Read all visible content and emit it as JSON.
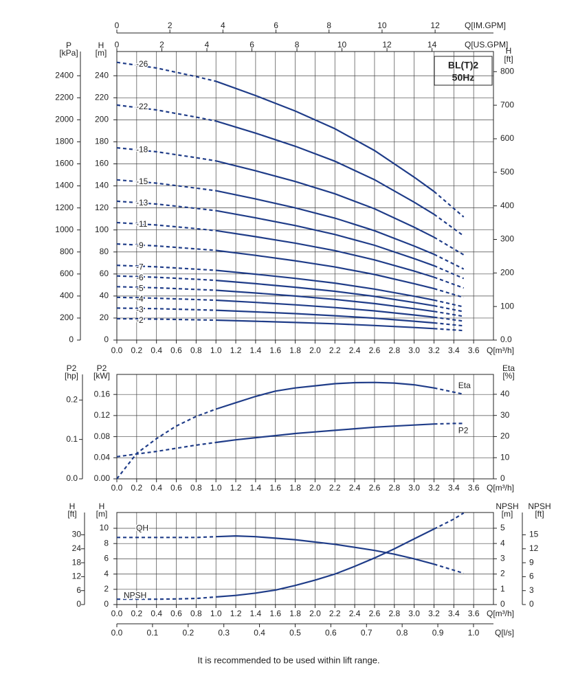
{
  "footnote": "It is recommended to be used within lift range.",
  "chart_data": [
    {
      "type": "line",
      "title": "BL(T)2",
      "subtitle": "50Hz",
      "color": "#1f3c88",
      "grid": true,
      "solid_range": [
        1.0,
        3.2
      ],
      "x_label": "Q[m³/h]",
      "xlim": [
        0,
        3.8
      ],
      "xticks": [
        {
          "value": 0,
          "label": "0.0"
        },
        0.2,
        0.4,
        0.6,
        0.8,
        {
          "value": 1,
          "label": "1.0"
        },
        1.2,
        1.4,
        1.6,
        1.8,
        {
          "value": 2,
          "label": "2.0"
        },
        2.2,
        2.4,
        2.6,
        2.8,
        {
          "value": 3,
          "label": "3.0"
        },
        3.2,
        3.4,
        3.6
      ],
      "x2_label": "Q[US.GPM]",
      "x2lim": [
        0,
        16.73
      ],
      "x2ticks": [
        0,
        2,
        4,
        6,
        8,
        10,
        12,
        14
      ],
      "x3_label": "Q[IM.GPM]",
      "x3lim": [
        0,
        14.2
      ],
      "x3ticks": [
        0,
        2,
        4,
        6,
        8,
        10,
        12
      ],
      "y_label": "H",
      "y_unit": "[m]",
      "ylim": [
        0,
        262
      ],
      "yticks": [
        0,
        20,
        40,
        60,
        80,
        100,
        120,
        140,
        160,
        180,
        200,
        220,
        240
      ],
      "y2_label": "P",
      "y2_unit": "[kPa]",
      "y2lim": [
        0,
        2620
      ],
      "y2ticks": [
        0,
        200,
        400,
        600,
        800,
        1000,
        1200,
        1400,
        1600,
        1800,
        2000,
        2200,
        2400
      ],
      "y3_label": "H",
      "y3_unit": "[ft]",
      "y3lim": [
        0,
        860
      ],
      "y3ticks": [
        {
          "value": 0,
          "label": "0.0"
        },
        100,
        200,
        300,
        400,
        500,
        600,
        700,
        800
      ],
      "x": [
        0,
        0.4,
        0.8,
        1.0,
        1.4,
        1.8,
        2.2,
        2.6,
        3.0,
        3.2,
        3.5
      ],
      "series": [
        {
          "name": "-2",
          "values": [
            19.4,
            19.0,
            18.4,
            18.1,
            17.1,
            16.0,
            14.8,
            13.2,
            11.4,
            10.4,
            8.6
          ]
        },
        {
          "name": "-3",
          "values": [
            29.1,
            28.5,
            27.6,
            27.1,
            25.6,
            24.0,
            22.1,
            19.9,
            17.1,
            15.6,
            12.9
          ]
        },
        {
          "name": "-4",
          "values": [
            38.8,
            38.0,
            36.8,
            36.2,
            34.2,
            32.0,
            29.5,
            26.5,
            22.8,
            20.8,
            17.2
          ]
        },
        {
          "name": "-5",
          "values": [
            48.5,
            47.5,
            46.0,
            45.2,
            42.7,
            40.0,
            36.9,
            33.1,
            28.5,
            26.0,
            21.5
          ]
        },
        {
          "name": "-6",
          "values": [
            58.2,
            57.0,
            55.2,
            54.2,
            51.2,
            48.0,
            44.3,
            39.7,
            34.1,
            31.1,
            25.8
          ]
        },
        {
          "name": "-7",
          "values": [
            67.9,
            66.5,
            64.4,
            63.3,
            59.8,
            56.0,
            51.7,
            46.3,
            39.8,
            36.3,
            30.1
          ]
        },
        {
          "name": "-9",
          "values": [
            87.3,
            85.5,
            82.8,
            81.4,
            76.9,
            72.0,
            66.4,
            59.6,
            51.2,
            46.7,
            38.7
          ]
        },
        {
          "name": "-11",
          "values": [
            106.7,
            104.5,
            101.2,
            99.4,
            93.9,
            88.0,
            81.2,
            72.8,
            62.6,
            57.1,
            47.3
          ]
        },
        {
          "name": "-13",
          "values": [
            126.1,
            123.5,
            119.6,
            117.5,
            111.0,
            104.0,
            95.9,
            86.1,
            74.0,
            67.5,
            55.9
          ]
        },
        {
          "name": "-15",
          "values": [
            145.5,
            142.5,
            138.0,
            135.6,
            128.1,
            120.0,
            110.7,
            99.3,
            85.4,
            77.9,
            64.5
          ]
        },
        {
          "name": "-18",
          "values": [
            174.6,
            171.0,
            165.6,
            162.7,
            153.7,
            144.0,
            132.8,
            119.2,
            102.4,
            93.4,
            77.4
          ]
        },
        {
          "name": "-22",
          "values": [
            213.4,
            209.0,
            202.4,
            198.9,
            187.9,
            176.0,
            162.4,
            145.6,
            125.2,
            114.2,
            94.6
          ]
        },
        {
          "name": "-26",
          "values": [
            252.2,
            247.0,
            239.2,
            235.0,
            222.0,
            208.0,
            191.9,
            172.1,
            147.9,
            134.9,
            111.8
          ]
        }
      ]
    },
    {
      "type": "line",
      "color": "#1f3c88",
      "grid": true,
      "solid_range": [
        1.0,
        3.2
      ],
      "x_label": "Q[m³/h]",
      "xlim": [
        0,
        3.8
      ],
      "xticks": [
        {
          "value": 0,
          "label": "0.0"
        },
        0.2,
        0.4,
        0.6,
        0.8,
        {
          "value": 1,
          "label": "1.0"
        },
        1.2,
        1.4,
        1.6,
        1.8,
        {
          "value": 2,
          "label": "2.0"
        },
        2.2,
        2.4,
        2.6,
        2.8,
        {
          "value": 3,
          "label": "3.0"
        },
        3.2,
        3.4,
        3.6
      ],
      "y_label": "P2",
      "y_unit": "[kW]",
      "ylim": [
        0,
        0.198
      ],
      "yticks": [
        {
          "value": 0,
          "label": "0.00"
        },
        0.04,
        0.08,
        0.12,
        0.16
      ],
      "y2_label": "P2",
      "y2_unit": "[hp]",
      "y2lim": [
        0,
        0.265
      ],
      "y2ticks": [
        {
          "value": 0,
          "label": "0.0"
        },
        0.1,
        0.2
      ],
      "y3_label": "Eta",
      "y3_unit": "[%]",
      "y3lim": [
        0,
        49.4
      ],
      "y3ticks": [
        0,
        10,
        20,
        30,
        40
      ],
      "x": [
        0,
        0.2,
        0.4,
        0.6,
        0.8,
        1.0,
        1.2,
        1.4,
        1.6,
        1.8,
        2.0,
        2.2,
        2.4,
        2.6,
        2.8,
        3.0,
        3.2,
        3.4,
        3.5
      ],
      "series": [
        {
          "name": "Eta",
          "axis": "y3",
          "values": [
            0,
            12,
            19,
            25,
            29.5,
            33,
            36,
            39,
            41.5,
            43,
            44,
            45,
            45.5,
            45.6,
            45.3,
            44.5,
            43,
            41,
            40
          ]
        },
        {
          "name": "P2",
          "values": [
            0.042,
            0.047,
            0.052,
            0.058,
            0.064,
            0.069,
            0.074,
            0.078,
            0.082,
            0.086,
            0.089,
            0.092,
            0.095,
            0.098,
            0.1,
            0.102,
            0.104,
            0.105,
            0.105
          ]
        }
      ]
    },
    {
      "type": "line",
      "color": "#1f3c88",
      "grid": true,
      "solid_range": [
        1.0,
        3.2
      ],
      "x_label": "Q[m³/h]",
      "xlim": [
        0,
        3.8
      ],
      "xticks": [
        {
          "value": 0,
          "label": "0.0"
        },
        0.2,
        0.4,
        0.6,
        0.8,
        {
          "value": 1,
          "label": "1.0"
        },
        1.2,
        1.4,
        1.6,
        1.8,
        {
          "value": 2,
          "label": "2.0"
        },
        2.2,
        2.4,
        2.6,
        2.8,
        {
          "value": 3,
          "label": "3.0"
        },
        3.2,
        3.4,
        3.6
      ],
      "x2_label": "Q[l/s]",
      "x2lim": [
        0,
        1.056
      ],
      "x2ticks": [
        {
          "value": 0,
          "label": "0.0"
        },
        0.1,
        0.2,
        0.3,
        0.4,
        0.5,
        0.6,
        0.7,
        0.8,
        0.9,
        {
          "value": 1,
          "label": "1.0"
        }
      ],
      "y_label": "H",
      "y_unit": "[m]",
      "ylim": [
        0,
        12.07
      ],
      "yticks": [
        0,
        2,
        4,
        6,
        8,
        10
      ],
      "y2_label": "H",
      "y2_unit": "[ft]",
      "y2lim": [
        0,
        39.6
      ],
      "y2ticks": [
        0,
        6,
        12,
        18,
        24,
        30
      ],
      "y3_label": "NPSH",
      "y3_unit": "[m]",
      "y3lim": [
        0,
        6.03
      ],
      "y3ticks": [
        0,
        1,
        2,
        3,
        4,
        5
      ],
      "y4_label": "NPSH",
      "y4_unit": "[ft]",
      "y4lim": [
        0,
        19.8
      ],
      "y4ticks": [
        0,
        3,
        6,
        9,
        12,
        15
      ],
      "x": [
        0,
        0.2,
        0.4,
        0.6,
        0.8,
        1.0,
        1.2,
        1.4,
        1.6,
        1.8,
        2.0,
        2.2,
        2.4,
        2.6,
        2.8,
        3.0,
        3.2,
        3.4,
        3.5
      ],
      "series": [
        {
          "name": "QH",
          "values": [
            8.8,
            8.8,
            8.8,
            8.8,
            8.8,
            8.9,
            9.0,
            8.9,
            8.7,
            8.5,
            8.2,
            7.9,
            7.5,
            7.1,
            6.6,
            6.0,
            5.3,
            4.5,
            4.1
          ]
        },
        {
          "name": "NPSH",
          "axis": "y3",
          "values": [
            0.35,
            0.35,
            0.35,
            0.37,
            0.4,
            0.5,
            0.6,
            0.75,
            0.95,
            1.25,
            1.6,
            2.0,
            2.5,
            3.05,
            3.65,
            4.3,
            4.95,
            5.6,
            6.0
          ]
        }
      ]
    }
  ]
}
